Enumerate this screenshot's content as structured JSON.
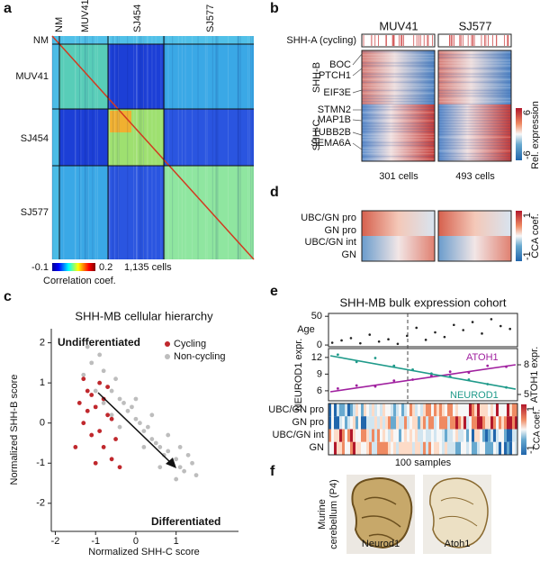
{
  "panel_a": {
    "label": "a",
    "columns": [
      "NM",
      "MUV41",
      "SJ454",
      "SJ577"
    ],
    "rows": [
      "NM",
      "MUV41",
      "SJ454",
      "SJ577"
    ],
    "colorbar": {
      "min": "-0.1",
      "max": "0.2",
      "label": "Correlation coef."
    },
    "cell_count": "1,135 cells"
  },
  "panel_b": {
    "label": "b",
    "groups": [
      "MUV41",
      "SJ577"
    ],
    "track": "SHH-A (cycling)",
    "programs": [
      "SHH-B",
      "SHH-C"
    ],
    "genes": [
      "BOC",
      "PTCH1",
      "EIF3E",
      "STMN2",
      "MAP1B",
      "TUBB2B",
      "SEMA6A"
    ],
    "cell_counts": [
      "301 cells",
      "493 cells"
    ],
    "colorbar": {
      "max": "6",
      "min": "-6",
      "label": "Rel. expression"
    }
  },
  "panel_d": {
    "label": "d",
    "rows": [
      "UBC/GN pro",
      "GN pro",
      "UBC/GN int",
      "GN"
    ],
    "colorbar": {
      "max": "1",
      "min": "-1",
      "label": "CCA coef."
    }
  },
  "panel_c": {
    "label": "c",
    "type": "scatter",
    "title": "SHH-MB cellular hierarchy",
    "xlabel": "Normalized SHH-C score",
    "ylabel": "Normalized SHH-B score",
    "xlim": [
      -2.1,
      2.55
    ],
    "ylim": [
      -2.7,
      2.35
    ],
    "xticks": [
      -2,
      -1,
      0,
      1
    ],
    "yticks": [
      -2,
      -1,
      0,
      1,
      2
    ],
    "annotations": [
      "Undifferentiated",
      "Differentiated"
    ],
    "series": [
      {
        "name": "Non-cycling",
        "color": "#bdbdbd",
        "x": [
          -1.3,
          -1.1,
          -0.9,
          -0.8,
          -0.7,
          -0.6,
          -0.5,
          -0.4,
          -0.3,
          -0.2,
          -0.1,
          0,
          0.1,
          0.2,
          0.3,
          0.4,
          0.5,
          0.6,
          0.7,
          0.8,
          0.9,
          1.0,
          1.1,
          1.2,
          1.3,
          1.4,
          1.5,
          -1.0,
          -0.8,
          -0.6,
          -0.4,
          0.2,
          0.6,
          1.0,
          0.8,
          -1.2,
          -0.9,
          0.0,
          0.4,
          1.1
        ],
        "values": [
          1.2,
          1.5,
          1.0,
          1.3,
          0.9,
          0.8,
          1.1,
          0.6,
          0.5,
          0.3,
          0.4,
          0.1,
          0.0,
          -0.2,
          -0.1,
          -0.4,
          -0.5,
          -0.6,
          -0.8,
          -0.7,
          -1.0,
          -0.9,
          -1.1,
          -1.2,
          -0.8,
          -1.0,
          -1.3,
          0.8,
          0.5,
          0.2,
          -0.1,
          -0.6,
          -1.1,
          -1.4,
          -0.3,
          1.9,
          1.7,
          0.6,
          0.2,
          -0.6
        ]
      },
      {
        "name": "Cycling",
        "color": "#c0282d",
        "x": [
          -1.4,
          -1.3,
          -1.2,
          -1.1,
          -1.0,
          -0.9,
          -0.8,
          -0.7,
          -0.6,
          -0.5,
          -1.5,
          -1.2,
          -1.0,
          -0.8,
          -0.6,
          -1.3,
          -0.9,
          -0.7,
          -0.4,
          -1.1
        ],
        "values": [
          0.5,
          0.0,
          0.8,
          -0.3,
          0.4,
          1.0,
          -0.6,
          0.2,
          -0.9,
          -0.4,
          -0.6,
          0.3,
          -1.0,
          0.6,
          0.1,
          1.1,
          -0.2,
          0.9,
          -1.1,
          0.7
        ]
      }
    ]
  },
  "panel_e": {
    "label": "e",
    "title": "SHH-MB bulk expression cohort",
    "xlim": [
      0,
      101
    ],
    "age": {
      "label": "Age",
      "ylim": [
        -3,
        55
      ],
      "yticks": [
        0,
        50
      ],
      "x": [
        2,
        7,
        12,
        17,
        22,
        27,
        32,
        37,
        42,
        47,
        52,
        57,
        62,
        67,
        72,
        77,
        82,
        87,
        92,
        97
      ],
      "values": [
        4,
        8,
        12,
        3,
        18,
        6,
        10,
        2,
        16,
        30,
        9,
        22,
        14,
        35,
        26,
        40,
        20,
        45,
        33,
        28
      ]
    },
    "expr": {
      "ylabel": "NEUROD1 expr.",
      "ylim": [
        4.2,
        13.6
      ],
      "yticks": [
        6,
        9,
        12
      ],
      "y2label": "ATOH1 expr.",
      "y2lim": [
        4.36,
        9.64
      ],
      "y2ticks": [
        5,
        8
      ],
      "series": [
        {
          "name": "ATOH1",
          "color": "#a0209f",
          "axis": "y2",
          "x": [
            5,
            15,
            25,
            35,
            45,
            55,
            65,
            75,
            85,
            95
          ],
          "values": [
            5.6,
            5.9,
            5.8,
            6.4,
            6.5,
            6.9,
            7.3,
            7.2,
            7.9,
            7.8
          ],
          "fit_x": [
            1,
            100
          ],
          "fit": [
            5.27,
            8.0
          ]
        },
        {
          "name": "NEUROD1",
          "color": "#1f9a8a",
          "x": [
            5,
            15,
            25,
            35,
            45,
            55,
            65,
            75,
            85,
            95
          ],
          "values": [
            12.5,
            11.2,
            11.9,
            10.5,
            9.8,
            9.1,
            8.6,
            8.0,
            7.2,
            6.6
          ],
          "fit_x": [
            1,
            100
          ],
          "fit": [
            12.3,
            6.3
          ]
        }
      ]
    },
    "rows": [
      "UBC/GN pro",
      "GN pro",
      "UBC/GN int",
      "GN"
    ],
    "samples": "100 samples",
    "colorbar": {
      "max": "1",
      "min": "-1",
      "label": "CCA coef."
    }
  },
  "panel_f": {
    "label": "f",
    "ylabel": [
      "Murine",
      "cerebellum (P4)"
    ],
    "images": [
      "Neurod1",
      "Atoh1"
    ]
  }
}
